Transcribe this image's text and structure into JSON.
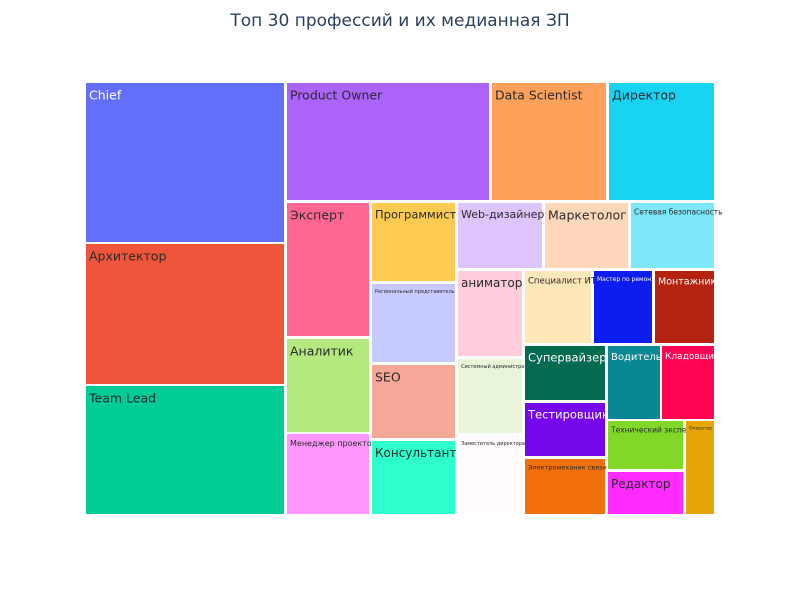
{
  "chart_data": {
    "type": "treemap",
    "title": "Топ 30 профессий и их медианная ЗП",
    "items": [
      {
        "label": "Chief",
        "color": "#636efa",
        "text_color": "#ffffff"
      },
      {
        "label": "Архитектор",
        "color": "#ef553b",
        "text_color": "#2a2a2a"
      },
      {
        "label": "Team Lead",
        "color": "#00cc96",
        "text_color": "#2a2a2a"
      },
      {
        "label": "Product Owner",
        "color": "#ab63fa",
        "text_color": "#2a2a2a"
      },
      {
        "label": "Data Scientist",
        "color": "#ffa15a",
        "text_color": "#2a2a2a"
      },
      {
        "label": "Директор",
        "color": "#19d3f3",
        "text_color": "#2a2a2a"
      },
      {
        "label": "Эксперт",
        "color": "#ff6692",
        "text_color": "#2a2a2a"
      },
      {
        "label": "Аналитик",
        "color": "#b6e880",
        "text_color": "#2a2a2a"
      },
      {
        "label": "Менеджер проектов",
        "color": "#ff97ff",
        "text_color": "#2a2a2a"
      },
      {
        "label": "Программист",
        "color": "#fecb52",
        "text_color": "#2a2a2a"
      },
      {
        "label": "Региональный представитель",
        "color": "#c6caff",
        "text_color": "#2a2a2a"
      },
      {
        "label": "SEO",
        "color": "#f6a898",
        "text_color": "#2a2a2a"
      },
      {
        "label": "Консультант",
        "color": "#2dffcd",
        "text_color": "#2a2a2a"
      },
      {
        "label": "Web-дизайнер",
        "color": "#ddc4fd",
        "text_color": "#2a2a2a"
      },
      {
        "label": "Маркетолог",
        "color": "#ffd8bb",
        "text_color": "#2a2a2a"
      },
      {
        "label": "Сетевая безопасность",
        "color": "#7ce8f9",
        "text_color": "#2a2a2a"
      },
      {
        "label": "аниматор",
        "color": "#ffccdb",
        "text_color": "#2a2a2a"
      },
      {
        "label": "Системный администратор",
        "color": "#e8f5d9",
        "text_color": "#2a2a2a"
      },
      {
        "label": "Заместитель директора",
        "color": "#fffbff",
        "text_color": "#2a2a2a"
      },
      {
        "label": "Специалист ИТ",
        "color": "#fee8b9",
        "text_color": "#2a2a2a"
      },
      {
        "label": "Мастер по ремонту",
        "color": "#0d1ded",
        "text_color": "#ffffff"
      },
      {
        "label": "Монтажник",
        "color": "#b32310",
        "text_color": "#ffffff"
      },
      {
        "label": "Супервайзер",
        "color": "#016a4f",
        "text_color": "#ffffff"
      },
      {
        "label": "Водитель",
        "color": "#098793",
        "text_color": "#ffffff"
      },
      {
        "label": "Кладовщик",
        "color": "#ff0452",
        "text_color": "#ffffff"
      },
      {
        "label": "Тестировщик",
        "color": "#7607eb",
        "text_color": "#ffffff"
      },
      {
        "label": "Технический эксперт",
        "color": "#82d829",
        "text_color": "#2a2a2a"
      },
      {
        "label": "Электромеханик связи",
        "color": "#f1700b",
        "text_color": "#2a2a2a"
      },
      {
        "label": "Редактор",
        "color": "#ff2bff",
        "text_color": "#2a2a2a"
      },
      {
        "label": "Оператор",
        "color": "#e8a508",
        "text_color": "#2a2a2a"
      }
    ]
  }
}
